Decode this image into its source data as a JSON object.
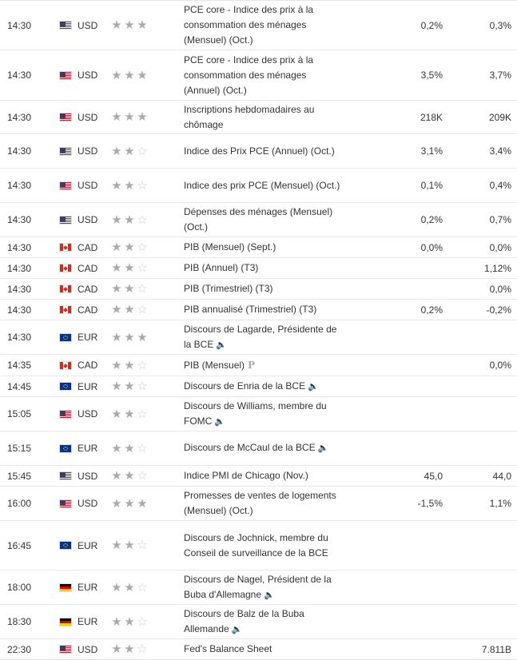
{
  "rows": [
    {
      "time": "14:30",
      "flag": "usd",
      "currency": "USD",
      "stars": 3,
      "event": "PCE core - Indice des prix à la consommation des ménages (Mensuel) (Oct.)",
      "actual": "0,2%",
      "forecast": "0,3%",
      "speech": false,
      "prelim": false,
      "h": 62
    },
    {
      "time": "14:30",
      "flag": "usd",
      "currency": "USD",
      "stars": 3,
      "event": "PCE core - Indice des prix à la consommation des ménages (Annuel) (Oct.)",
      "actual": "3,5%",
      "forecast": "3,7%",
      "speech": false,
      "prelim": false,
      "h": 63
    },
    {
      "time": "14:30",
      "flag": "usd",
      "currency": "USD",
      "stars": 3,
      "event": "Inscriptions hebdomadaires au chômage",
      "actual": "218K",
      "forecast": "209K",
      "speech": false,
      "prelim": false,
      "h": 42
    },
    {
      "time": "14:30",
      "flag": "usd",
      "currency": "USD",
      "stars": 2,
      "event": "Indice des Prix PCE (Annuel) (Oct.)",
      "actual": "3,1%",
      "forecast": "3,4%",
      "speech": false,
      "prelim": false,
      "h": 43
    },
    {
      "time": "14:30",
      "flag": "usd",
      "currency": "USD",
      "stars": 2,
      "event": "Indice des prix PCE (Mensuel) (Oct.)",
      "actual": "0,1%",
      "forecast": "0,4%",
      "speech": false,
      "prelim": false,
      "h": 43
    },
    {
      "time": "14:30",
      "flag": "usd",
      "currency": "USD",
      "stars": 2,
      "event": "Dépenses des ménages (Mensuel) (Oct.)",
      "actual": "0,2%",
      "forecast": "0,7%",
      "speech": false,
      "prelim": false,
      "h": 43
    },
    {
      "time": "14:30",
      "flag": "cad",
      "currency": "CAD",
      "stars": 2,
      "event": "PIB (Mensuel) (Sept.)",
      "actual": "0,0%",
      "forecast": "0,0%",
      "speech": false,
      "prelim": false,
      "h": 26
    },
    {
      "time": "14:30",
      "flag": "cad",
      "currency": "CAD",
      "stars": 2,
      "event": "PIB (Annuel) (T3)",
      "actual": "",
      "forecast": "1,12%",
      "speech": false,
      "prelim": false,
      "h": 26
    },
    {
      "time": "14:30",
      "flag": "cad",
      "currency": "CAD",
      "stars": 2,
      "event": "PIB (Trimestriel) (T3)",
      "actual": "",
      "forecast": "0,0%",
      "speech": false,
      "prelim": false,
      "h": 26
    },
    {
      "time": "14:30",
      "flag": "cad",
      "currency": "CAD",
      "stars": 2,
      "event": "PIB annualisé (Trimestriel) (T3)",
      "actual": "0,2%",
      "forecast": "-0,2%",
      "speech": false,
      "prelim": false,
      "h": 26
    },
    {
      "time": "14:30",
      "flag": "eur",
      "currency": "EUR",
      "stars": 3,
      "event": "Discours de Lagarde, Présidente de la BCE",
      "actual": "",
      "forecast": "",
      "speech": true,
      "prelim": false,
      "h": 43
    },
    {
      "time": "14:35",
      "flag": "cad",
      "currency": "CAD",
      "stars": 2,
      "event": "PIB (Mensuel)",
      "actual": "",
      "forecast": "0,0%",
      "speech": false,
      "prelim": true,
      "h": 27
    },
    {
      "time": "14:45",
      "flag": "eur",
      "currency": "EUR",
      "stars": 2,
      "event": "Discours de Enria de la BCE",
      "actual": "",
      "forecast": "",
      "speech": true,
      "prelim": false,
      "h": 26
    },
    {
      "time": "15:05",
      "flag": "usd",
      "currency": "USD",
      "stars": 2,
      "event": "Discours de Williams, membre du FOMC",
      "actual": "",
      "forecast": "",
      "speech": true,
      "prelim": false,
      "h": 43
    },
    {
      "time": "15:15",
      "flag": "eur",
      "currency": "EUR",
      "stars": 2,
      "event": "Discours de McCaul de la BCE",
      "actual": "",
      "forecast": "",
      "speech": true,
      "prelim": false,
      "h": 43
    },
    {
      "time": "15:45",
      "flag": "usd",
      "currency": "USD",
      "stars": 2,
      "event": "Indice PMI de Chicago (Nov.)",
      "actual": "45,0",
      "forecast": "44,0",
      "speech": false,
      "prelim": false,
      "h": 26
    },
    {
      "time": "16:00",
      "flag": "usd",
      "currency": "USD",
      "stars": 3,
      "event": "Promesses de ventes de logements (Mensuel) (Oct.)",
      "actual": "-1,5%",
      "forecast": "1,1%",
      "speech": false,
      "prelim": false,
      "h": 43
    },
    {
      "time": "16:45",
      "flag": "eur",
      "currency": "EUR",
      "stars": 2,
      "event": "Discours de Jochnick, membre du Conseil de surveillance de la BCE",
      "actual": "",
      "forecast": "",
      "speech": false,
      "prelim": false,
      "h": 62
    },
    {
      "time": "18:00",
      "flag": "de",
      "currency": "EUR",
      "stars": 2,
      "event": "Discours de Nagel, Président de la Buba d'Allemagne",
      "actual": "",
      "forecast": "",
      "speech": true,
      "prelim": false,
      "h": 43
    },
    {
      "time": "18:30",
      "flag": "de",
      "currency": "EUR",
      "stars": 2,
      "event": "Discours de Balz de la Buba Allemande",
      "actual": "",
      "forecast": "",
      "speech": true,
      "prelim": false,
      "h": 43
    },
    {
      "time": "22:30",
      "flag": "usd",
      "currency": "USD",
      "stars": 2,
      "event": "Fed's Balance Sheet",
      "actual": "",
      "forecast": "7.811B",
      "speech": false,
      "prelim": false,
      "h": 26
    }
  ]
}
